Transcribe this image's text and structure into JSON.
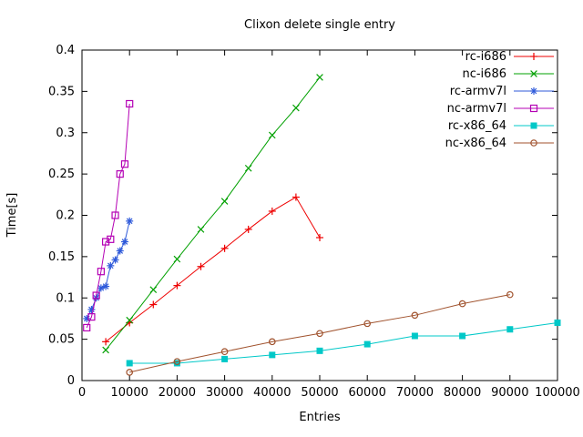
{
  "chart_data": {
    "type": "line",
    "title": "Clixon delete single entry",
    "xlabel": "Entries",
    "ylabel": "Time[s]",
    "xlim": [
      0,
      100000
    ],
    "ylim": [
      0,
      0.4
    ],
    "grid": false,
    "legend_position": "inside-top-right",
    "background": "#ffffff",
    "border_color": "#000000",
    "xticks": [
      [
        0,
        "0"
      ],
      [
        10000,
        "10000"
      ],
      [
        20000,
        "20000"
      ],
      [
        30000,
        "30000"
      ],
      [
        40000,
        "40000"
      ],
      [
        50000,
        "50000"
      ],
      [
        60000,
        "60000"
      ],
      [
        70000,
        "70000"
      ],
      [
        80000,
        "80000"
      ],
      [
        90000,
        "90000"
      ],
      [
        100000,
        "100000"
      ]
    ],
    "yticks": [
      [
        0,
        "0"
      ],
      [
        0.05,
        "0.05"
      ],
      [
        0.1,
        "0.1"
      ],
      [
        0.15,
        "0.15"
      ],
      [
        0.2,
        "0.2"
      ],
      [
        0.25,
        "0.25"
      ],
      [
        0.3,
        "0.3"
      ],
      [
        0.35,
        "0.35"
      ],
      [
        0.4,
        "0.4"
      ]
    ],
    "series": [
      {
        "name": "rc-i686",
        "color": "#ee0000",
        "marker": "plus",
        "x": [
          5000,
          10000,
          15000,
          20000,
          25000,
          30000,
          35000,
          40000,
          45000,
          50000
        ],
        "y": [
          0.047,
          0.07,
          0.092,
          0.115,
          0.138,
          0.16,
          0.183,
          0.205,
          0.222,
          0.173
        ]
      },
      {
        "name": "nc-i686",
        "color": "#00a000",
        "marker": "cross",
        "x": [
          5000,
          10000,
          15000,
          20000,
          25000,
          30000,
          35000,
          40000,
          45000,
          50000
        ],
        "y": [
          0.037,
          0.073,
          0.11,
          0.147,
          0.183,
          0.217,
          0.257,
          0.297,
          0.33,
          0.367
        ]
      },
      {
        "name": "rc-armv7l",
        "color": "#2f5ada",
        "marker": "asterisk",
        "x": [
          1000,
          2000,
          3000,
          4000,
          5000,
          6000,
          7000,
          8000,
          9000,
          10000
        ],
        "y": [
          0.075,
          0.086,
          0.1,
          0.112,
          0.114,
          0.139,
          0.146,
          0.157,
          0.168,
          0.193
        ]
      },
      {
        "name": "nc-armv7l",
        "color": "#b400b4",
        "marker": "square-open",
        "x": [
          1000,
          2000,
          3000,
          4000,
          5000,
          6000,
          7000,
          8000,
          9000,
          10000
        ],
        "y": [
          0.064,
          0.077,
          0.103,
          0.132,
          0.168,
          0.171,
          0.2,
          0.25,
          0.262,
          0.335
        ]
      },
      {
        "name": "rc-x86_64",
        "color": "#00c8c8",
        "marker": "square-filled",
        "x": [
          10000,
          20000,
          30000,
          40000,
          50000,
          60000,
          70000,
          80000,
          90000,
          100000
        ],
        "y": [
          0.021,
          0.021,
          0.026,
          0.031,
          0.036,
          0.044,
          0.054,
          0.054,
          0.062,
          0.07
        ]
      },
      {
        "name": "nc-x86_64",
        "color": "#a0522d",
        "marker": "circle-open",
        "x": [
          10000,
          20000,
          30000,
          40000,
          50000,
          60000,
          70000,
          80000,
          90000
        ],
        "y": [
          0.01,
          0.023,
          0.035,
          0.047,
          0.057,
          0.069,
          0.079,
          0.093,
          0.104
        ]
      }
    ]
  }
}
